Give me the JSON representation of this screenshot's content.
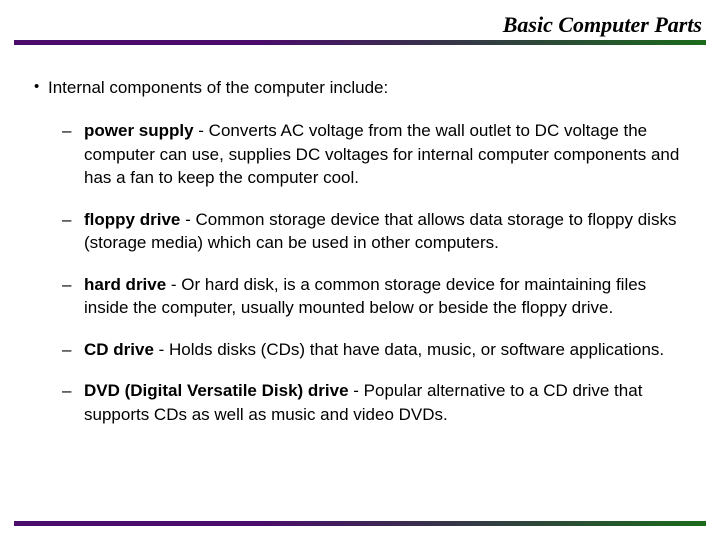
{
  "title": "Basic Computer Parts",
  "intro": "Internal components of the computer include:",
  "items": [
    {
      "term": "power supply",
      "desc": " - Converts AC voltage from the wall outlet to DC voltage the computer can use, supplies DC voltages for internal computer components and has a fan to keep the computer cool."
    },
    {
      "term": "floppy drive",
      "desc": " - Common storage device that allows data storage to floppy disks (storage media) which can be used in other computers."
    },
    {
      "term": "hard drive",
      "desc": " - Or hard disk, is a common storage device for maintaining files inside the computer, usually mounted below or beside the floppy drive."
    },
    {
      "term": "CD drive",
      "desc": " - Holds disks (CDs) that have data, music, or software applications."
    },
    {
      "term": "DVD (Digital Versatile Disk) drive",
      "desc": " - Popular alternative to a CD drive that supports CDs as well as music and video DVDs."
    }
  ],
  "colors": {
    "gradient_start": "#4b0c6b",
    "gradient_end": "#1b6b1b",
    "text": "#000000",
    "background": "#ffffff"
  },
  "typography": {
    "title_fontsize": 22,
    "body_fontsize": 17,
    "title_family": "Times New Roman",
    "body_family": "Arial"
  }
}
